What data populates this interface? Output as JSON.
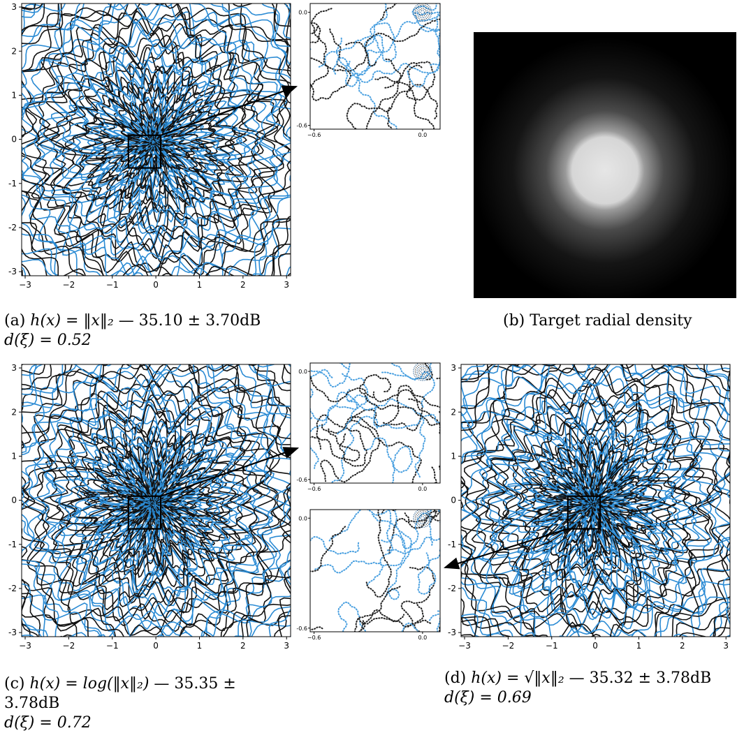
{
  "figure": {
    "captions": {
      "a": {
        "label": "(a)",
        "formula": "h(x) = ‖x‖₂",
        "score": "— 35.10 ± 3.70dB",
        "d": "d(ξ) = 0.52"
      },
      "b": {
        "label": "(b)",
        "text": "Target radial density"
      },
      "c": {
        "label": "(c)",
        "formula": "h(x)  =  log(‖x‖₂)",
        "score_line1": "—  35.35  ±",
        "score_line2": "3.78dB",
        "d": "d(ξ) = 0.72"
      },
      "d": {
        "label": "(d)",
        "formula": "h(x) = √‖x‖₂",
        "score": "— 35.32 ± 3.78dB",
        "d": "d(ξ) = 0.69"
      }
    },
    "main_ticks": [
      "−3",
      "−2",
      "−1",
      "0",
      "1",
      "2",
      "3"
    ],
    "main_yticks": [
      "3",
      "2",
      "1",
      "0",
      "-1",
      "-2",
      "-3"
    ],
    "inset_ticks": {
      "x": [
        "−0.6",
        "0.0"
      ],
      "y": [
        "0.0",
        "-0.6"
      ]
    },
    "colors": {
      "curve_blue": "#2b8bd4",
      "curve_black": "#111111",
      "density_bg": "#000000",
      "density_core": "#dcdcdc"
    }
  },
  "chart_data": [
    {
      "type": "scatter",
      "panel": "a",
      "xlim": [
        -3.1,
        3.1
      ],
      "ylim": [
        -3.1,
        3.1
      ],
      "grid": false,
      "zoom_box": {
        "x": [
          -0.6,
          0.1
        ],
        "y": [
          -0.6,
          0.1
        ]
      }
    },
    {
      "type": "heatmap",
      "panel": "b",
      "title": "Target radial density"
    },
    {
      "type": "scatter",
      "panel": "c",
      "xlim": [
        -3.1,
        3.1
      ],
      "ylim": [
        -3.1,
        3.1
      ],
      "grid": false,
      "zoom_box": {
        "x": [
          -0.6,
          0.1
        ],
        "y": [
          -0.6,
          0.1
        ]
      }
    },
    {
      "type": "scatter",
      "panel": "d",
      "xlim": [
        -3.1,
        3.1
      ],
      "ylim": [
        -3.1,
        3.1
      ],
      "grid": false,
      "zoom_box": {
        "x": [
          -0.6,
          0.1
        ],
        "y": [
          -0.6,
          0.1
        ]
      }
    }
  ]
}
